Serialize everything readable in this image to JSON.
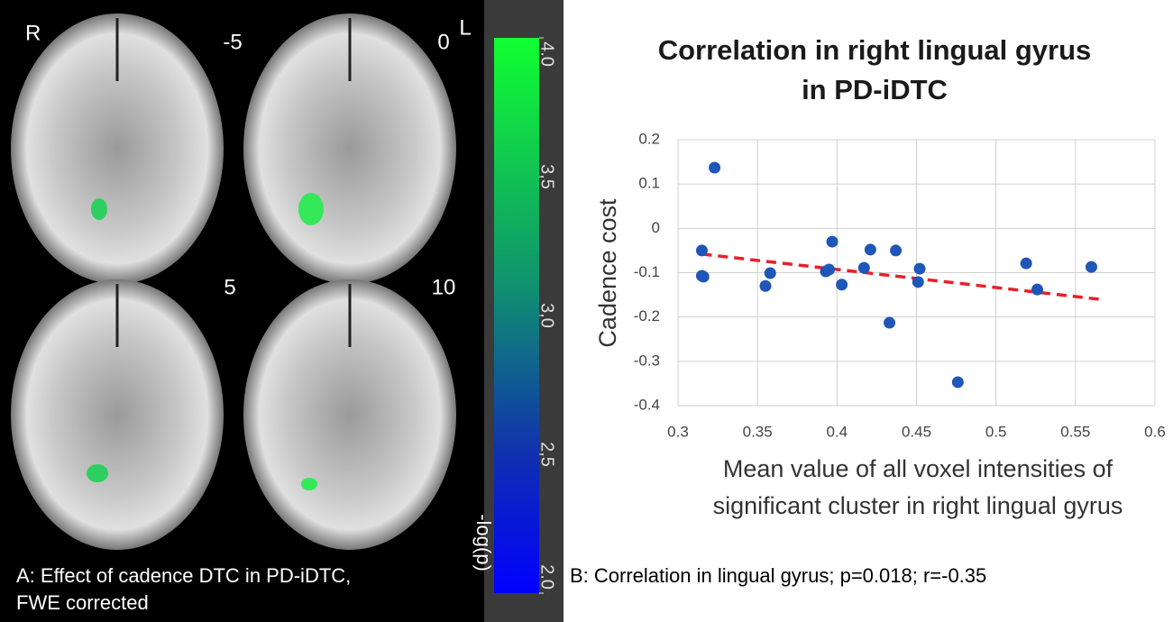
{
  "panel_a": {
    "slice_labels": [
      "R",
      "-5",
      "0",
      "L",
      "5",
      "10"
    ],
    "colorbar": {
      "label": "-log(p)",
      "lim": [
        2,
        4
      ],
      "ticks": [
        {
          "value": 4,
          "label": "4.0"
        },
        {
          "value": 3.5,
          "label": "3.5"
        },
        {
          "value": 3,
          "label": "3.0"
        },
        {
          "value": 2.5,
          "label": "2.5"
        },
        {
          "value": 2,
          "label": "2.0"
        }
      ]
    },
    "caption": [
      "A: Effect of cadence DTC in PD-iDTC,",
      "FWE corrected"
    ]
  },
  "chart_data": {
    "type": "scatter",
    "title": [
      "Correlation in right lingual gyrus",
      "in PD-iDTC"
    ],
    "xlabel": [
      "Mean value of all voxel intensities of",
      "significant cluster in right lingual gyrus"
    ],
    "ylabel": "Cadence cost",
    "x": [
      0.323,
      0.315,
      0.315,
      0.316,
      0.355,
      0.358,
      0.393,
      0.395,
      0.397,
      0.403,
      0.417,
      0.421,
      0.433,
      0.437,
      0.452,
      0.451,
      0.476,
      0.519,
      0.526,
      0.56
    ],
    "values": [
      0.137,
      -0.05,
      -0.107,
      -0.109,
      -0.13,
      -0.101,
      -0.097,
      -0.093,
      -0.03,
      -0.127,
      -0.089,
      -0.048,
      -0.213,
      -0.05,
      -0.091,
      -0.121,
      -0.347,
      -0.079,
      -0.138,
      -0.087
    ],
    "color": "#1f56b8",
    "trendline": {
      "x": [
        0.315,
        0.565
      ],
      "values": [
        -0.058,
        -0.16
      ],
      "color": "#e8202a"
    },
    "xlim": [
      0.3,
      0.6
    ],
    "xticks": [
      0.3,
      0.35,
      0.4,
      0.45,
      0.5,
      0.55,
      0.6
    ],
    "ylim": [
      -0.4,
      0.2
    ],
    "yticks": [
      0.2,
      0.1,
      0,
      -0.1,
      -0.2,
      -0.3,
      -0.4
    ],
    "grid": true
  },
  "panel_b": {
    "caption": "B: Correlation in lingual gyrus; p=0.018; r=-0.35"
  }
}
